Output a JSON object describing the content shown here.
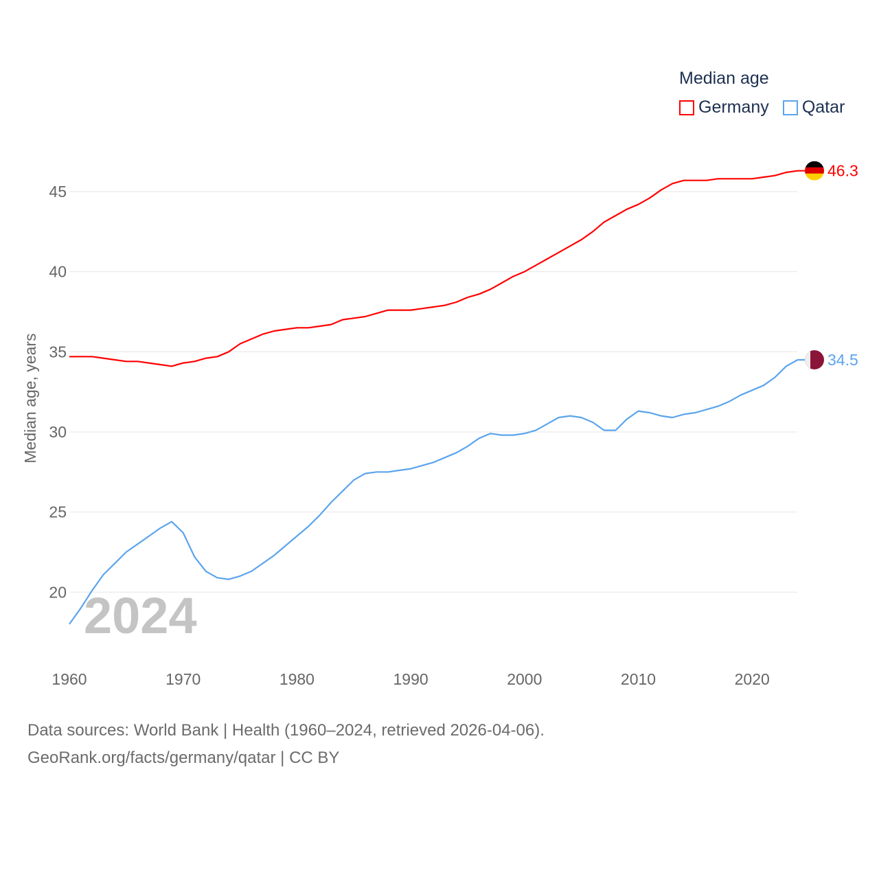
{
  "chart_data": {
    "type": "line",
    "title": "Median age",
    "xlabel": "",
    "ylabel": "Median age, years",
    "xlim": [
      1960,
      2024
    ],
    "ylim": [
      17,
      47
    ],
    "x_ticks": [
      1960,
      1970,
      1980,
      1990,
      2000,
      2010,
      2020
    ],
    "y_ticks": [
      20,
      25,
      30,
      35,
      40,
      45
    ],
    "grid": true,
    "legend_position": "top-right",
    "year_watermark": "2024",
    "x": [
      1960,
      1961,
      1962,
      1963,
      1964,
      1965,
      1966,
      1967,
      1968,
      1969,
      1970,
      1971,
      1972,
      1973,
      1974,
      1975,
      1976,
      1977,
      1978,
      1979,
      1980,
      1981,
      1982,
      1983,
      1984,
      1985,
      1986,
      1987,
      1988,
      1989,
      1990,
      1991,
      1992,
      1993,
      1994,
      1995,
      1996,
      1997,
      1998,
      1999,
      2000,
      2001,
      2002,
      2003,
      2004,
      2005,
      2006,
      2007,
      2008,
      2009,
      2010,
      2011,
      2012,
      2013,
      2014,
      2015,
      2016,
      2017,
      2018,
      2019,
      2020,
      2021,
      2022,
      2023,
      2024
    ],
    "series": [
      {
        "name": "Germany",
        "color": "#ff0000",
        "end_label": "46.3",
        "flag": "germany-flag",
        "values": [
          34.7,
          34.7,
          34.7,
          34.6,
          34.5,
          34.4,
          34.4,
          34.3,
          34.2,
          34.1,
          34.3,
          34.4,
          34.6,
          34.7,
          35.0,
          35.5,
          35.8,
          36.1,
          36.3,
          36.4,
          36.5,
          36.5,
          36.6,
          36.7,
          37.0,
          37.1,
          37.2,
          37.4,
          37.6,
          37.6,
          37.6,
          37.7,
          37.8,
          37.9,
          38.1,
          38.4,
          38.6,
          38.9,
          39.3,
          39.7,
          40.0,
          40.4,
          40.8,
          41.2,
          41.6,
          42.0,
          42.5,
          43.1,
          43.5,
          43.9,
          44.2,
          44.6,
          45.1,
          45.5,
          45.7,
          45.7,
          45.7,
          45.8,
          45.8,
          45.8,
          45.8,
          45.9,
          46.0,
          46.2,
          46.3
        ]
      },
      {
        "name": "Qatar",
        "color": "#5ba4ec",
        "end_label": "34.5",
        "flag": "qatar-flag",
        "values": [
          18.0,
          19.0,
          20.1,
          21.1,
          21.8,
          22.5,
          23.0,
          23.5,
          24.0,
          24.4,
          23.7,
          22.2,
          21.3,
          20.9,
          20.8,
          21.0,
          21.3,
          21.8,
          22.3,
          22.9,
          23.5,
          24.1,
          24.8,
          25.6,
          26.3,
          27.0,
          27.4,
          27.5,
          27.5,
          27.6,
          27.7,
          27.9,
          28.1,
          28.4,
          28.7,
          29.1,
          29.6,
          29.9,
          29.8,
          29.8,
          29.9,
          30.1,
          30.5,
          30.9,
          31.0,
          30.9,
          30.6,
          30.1,
          30.1,
          30.8,
          31.3,
          31.2,
          31.0,
          30.9,
          31.1,
          31.2,
          31.4,
          31.6,
          31.9,
          32.3,
          32.6,
          32.9,
          33.4,
          34.1,
          34.5
        ]
      }
    ]
  },
  "footer": {
    "line1": "Data sources: World Bank | Health (1960–2024, retrieved 2026-04-06).",
    "line2": "GeoRank.org/facts/germany/qatar | CC BY"
  }
}
